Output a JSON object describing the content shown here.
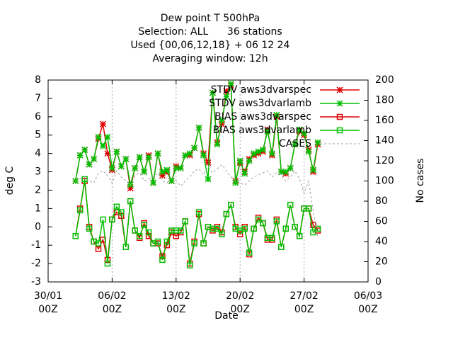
{
  "chart_data": {
    "type": "line",
    "title": [
      "Dew point T 500hPa",
      "Selection: ALL      36 stations",
      "Used {00,06,12,18} + 06 12 24",
      "Averaging window: 12h"
    ],
    "xlabel": "Date",
    "ylabel": "deg C",
    "y2label": "No cases",
    "x": [
      3,
      3.5,
      4,
      4.5,
      5,
      5.5,
      6,
      6.5,
      7,
      7.5,
      8,
      8.5,
      9,
      9.5,
      10,
      10.5,
      11,
      11.5,
      12,
      12.5,
      13,
      13.5,
      14,
      14.5,
      15,
      15.5,
      16,
      16.5,
      17,
      17.5,
      18,
      18.5,
      19,
      19.5,
      20,
      20.5,
      21,
      21.5,
      22,
      22.5,
      23,
      23.5,
      24,
      24.5,
      25,
      25.5,
      26,
      26.5,
      27,
      27.5,
      28,
      28.5,
      29,
      29.5
    ],
    "xlim": [
      0,
      35
    ],
    "xticks": [
      {
        "value": 0,
        "label": "30/01 00Z"
      },
      {
        "value": 7,
        "label": "06/02 00Z"
      },
      {
        "value": 14,
        "label": "13/02 00Z"
      },
      {
        "value": 21,
        "label": "20/02 00Z"
      },
      {
        "value": 28,
        "label": "27/02 00Z"
      },
      {
        "value": 35,
        "label": "06/03 00Z"
      }
    ],
    "ylim": [
      -3,
      8
    ],
    "yticks": [
      -3,
      -2,
      -1,
      0,
      1,
      2,
      3,
      4,
      5,
      6,
      7,
      8
    ],
    "y2lim": [
      0,
      200
    ],
    "y2ticks": [
      0,
      20,
      40,
      60,
      80,
      100,
      120,
      140,
      160,
      180,
      200
    ],
    "grid": "x",
    "legend": "top-right",
    "series": [
      {
        "name": "STDV aws3dvarspec",
        "color": "#e00000",
        "marker": "star",
        "values": [
          2.5,
          3.9,
          4.2,
          3.4,
          3.7,
          4.8,
          5.6,
          4.0,
          3.1,
          4.1,
          3.3,
          3.7,
          2.1,
          3.2,
          3.8,
          3.0,
          3.9,
          2.4,
          4.0,
          2.8,
          3.0,
          2.5,
          3.3,
          3.2,
          3.9,
          3.9,
          4.3,
          5.4,
          4.0,
          3.5,
          7.3,
          4.6,
          5.6,
          7.4,
          7.7,
          2.5,
          3.5,
          3.0,
          3.7,
          3.9,
          4.0,
          4.1,
          5.3,
          3.9,
          6.0,
          3.0,
          2.9,
          3.2,
          4.5,
          5.2,
          5.0,
          4.2,
          3.0,
          4.5
        ]
      },
      {
        "name": "STDV aws3dvarlamb",
        "color": "#00c000",
        "marker": "star",
        "values": [
          2.5,
          3.9,
          4.2,
          3.4,
          3.7,
          4.9,
          4.4,
          4.9,
          3.2,
          4.1,
          3.3,
          3.7,
          2.3,
          3.2,
          3.8,
          3.0,
          3.8,
          2.4,
          4.0,
          3.0,
          3.1,
          2.5,
          3.2,
          3.2,
          3.9,
          4.0,
          4.3,
          5.4,
          3.9,
          2.6,
          7.3,
          4.5,
          5.8,
          7.1,
          7.8,
          2.4,
          3.6,
          2.9,
          3.6,
          4.0,
          4.1,
          4.2,
          5.2,
          4.0,
          6.1,
          3.0,
          3.0,
          3.2,
          4.5,
          5.3,
          5.1,
          4.1,
          3.1,
          4.6
        ]
      },
      {
        "name": "BIAS aws3dvarspec",
        "color": "#e00000",
        "marker": "square",
        "values": [
          -0.5,
          1.0,
          2.5,
          0.0,
          -0.8,
          -1.2,
          -0.7,
          -1.8,
          0.4,
          0.8,
          0.6,
          -1.1,
          1.4,
          -0.2,
          -0.6,
          0.2,
          -0.5,
          -0.9,
          -0.9,
          -1.6,
          -1.0,
          -0.3,
          -0.5,
          -0.3,
          0.3,
          -2.0,
          -0.8,
          0.7,
          -0.9,
          0.0,
          -0.2,
          0.0,
          -0.3,
          0.7,
          1.2,
          0.0,
          -0.4,
          0.0,
          -1.5,
          -0.1,
          0.5,
          0.2,
          -0.7,
          -0.7,
          0.4,
          -1.1,
          -0.1,
          1.2,
          0.0,
          -0.5,
          1.0,
          1.0,
          0.1,
          -0.2
        ]
      },
      {
        "name": "BIAS aws3dvarlamb",
        "color": "#00c000",
        "marker": "square",
        "values": [
          -0.5,
          0.9,
          2.6,
          -0.1,
          -0.8,
          -0.9,
          0.4,
          -2.0,
          0.4,
          1.1,
          0.8,
          -1.1,
          1.4,
          -0.2,
          -0.5,
          0.1,
          -0.3,
          -0.9,
          -0.8,
          -1.8,
          -0.8,
          -0.2,
          -0.2,
          -0.2,
          0.3,
          -2.1,
          -0.9,
          0.8,
          -0.9,
          0.0,
          -0.1,
          -0.1,
          -0.4,
          0.7,
          1.2,
          -0.1,
          -0.2,
          -0.1,
          -1.4,
          -0.1,
          0.4,
          0.2,
          -0.6,
          -0.6,
          0.3,
          -1.1,
          -0.1,
          1.2,
          0.0,
          -0.5,
          1.0,
          1.0,
          -0.3,
          -0.1
        ]
      },
      {
        "name": "CASES",
        "color": "#a0a0a0",
        "axis": "y2",
        "dash": true,
        "values": [
          100,
          102,
          104,
          100,
          98,
          108,
          110,
          105,
          98,
          110,
          104,
          100,
          96,
          105,
          108,
          100,
          102,
          104,
          108,
          100,
          98,
          104,
          100,
          95,
          100,
          104,
          110,
          112,
          106,
          114,
          108,
          112,
          116,
          110,
          104,
          100,
          98,
          96,
          100,
          104,
          106,
          108,
          110,
          104,
          108,
          106,
          100,
          104,
          110,
          102,
          88,
          100,
          70,
          45
        ]
      }
    ]
  }
}
